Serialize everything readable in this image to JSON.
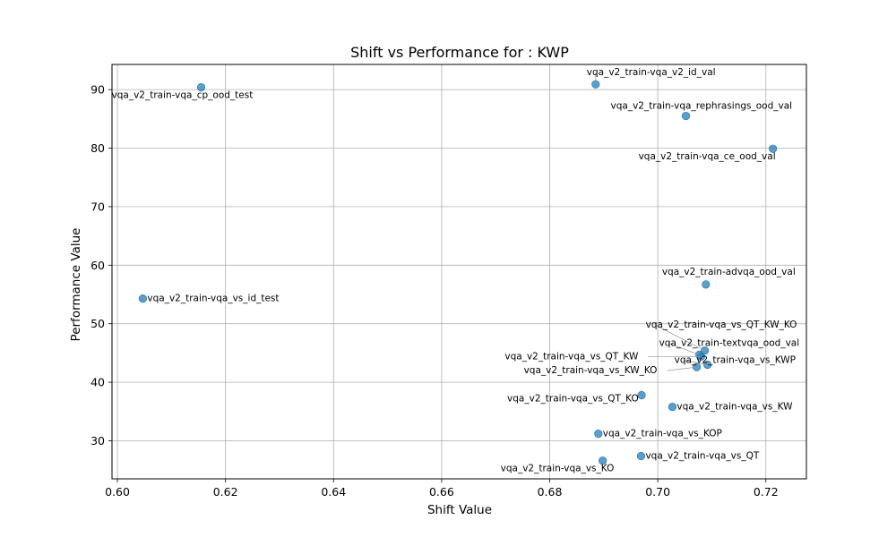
{
  "chart_data": {
    "type": "scatter",
    "title": "Shift vs Performance for : KWP",
    "xlabel": "Shift Value",
    "ylabel": "Performance Value",
    "xlim": [
      0.599,
      0.7275
    ],
    "ylim": [
      23.5,
      94.3
    ],
    "xticks": [
      0.6,
      0.62,
      0.64,
      0.66,
      0.68,
      0.7,
      0.72
    ],
    "yticks": [
      30,
      40,
      50,
      60,
      70,
      80,
      90
    ],
    "grid": true,
    "marker_color": "#1f77b4",
    "points": [
      {
        "label": "vqa_v2_train-vqa_cp_ood_test",
        "x": 0.6155,
        "y": 90.4
      },
      {
        "label": "vqa_v2_train-vqa_v2_id_val",
        "x": 0.6885,
        "y": 90.9
      },
      {
        "label": "vqa_v2_train-vqa_rephrasings_ood_val",
        "x": 0.7052,
        "y": 85.5
      },
      {
        "label": "vqa_v2_train-vqa_ce_ood_val",
        "x": 0.7213,
        "y": 79.9
      },
      {
        "label": "vqa_v2_train-vqa_vs_id_test",
        "x": 0.6047,
        "y": 54.3
      },
      {
        "label": "vqa_v2_train-advqa_ood_val",
        "x": 0.7089,
        "y": 56.7
      },
      {
        "label": "vqa_v2_train-vqa_vs_QT_KW_KO",
        "x": 0.7087,
        "y": 45.4
      },
      {
        "label": "vqa_v2_train-textvqa_ood_val",
        "x": 0.7077,
        "y": 44.7
      },
      {
        "label": "vqa_v2_train-vqa_vs_QT_KW",
        "x": 0.708,
        "y": 44.4
      },
      {
        "label": "vqa_v2_train-vqa_vs_KWP",
        "x": 0.7092,
        "y": 43.0
      },
      {
        "label": "vqa_v2_train-vqa_vs_KW_KO",
        "x": 0.7072,
        "y": 42.6
      },
      {
        "label": "vqa_v2_train-vqa_vs_QT_KO",
        "x": 0.697,
        "y": 37.8
      },
      {
        "label": "vqa_v2_train-vqa_vs_KW",
        "x": 0.7027,
        "y": 35.8
      },
      {
        "label": "vqa_v2_train-vqa_vs_KOP",
        "x": 0.689,
        "y": 31.2
      },
      {
        "label": "vqa_v2_train-vqa_vs_QT",
        "x": 0.6969,
        "y": 27.4
      },
      {
        "label": "vqa_v2_train-vqa_vs_KO",
        "x": 0.6898,
        "y": 26.6
      }
    ]
  }
}
